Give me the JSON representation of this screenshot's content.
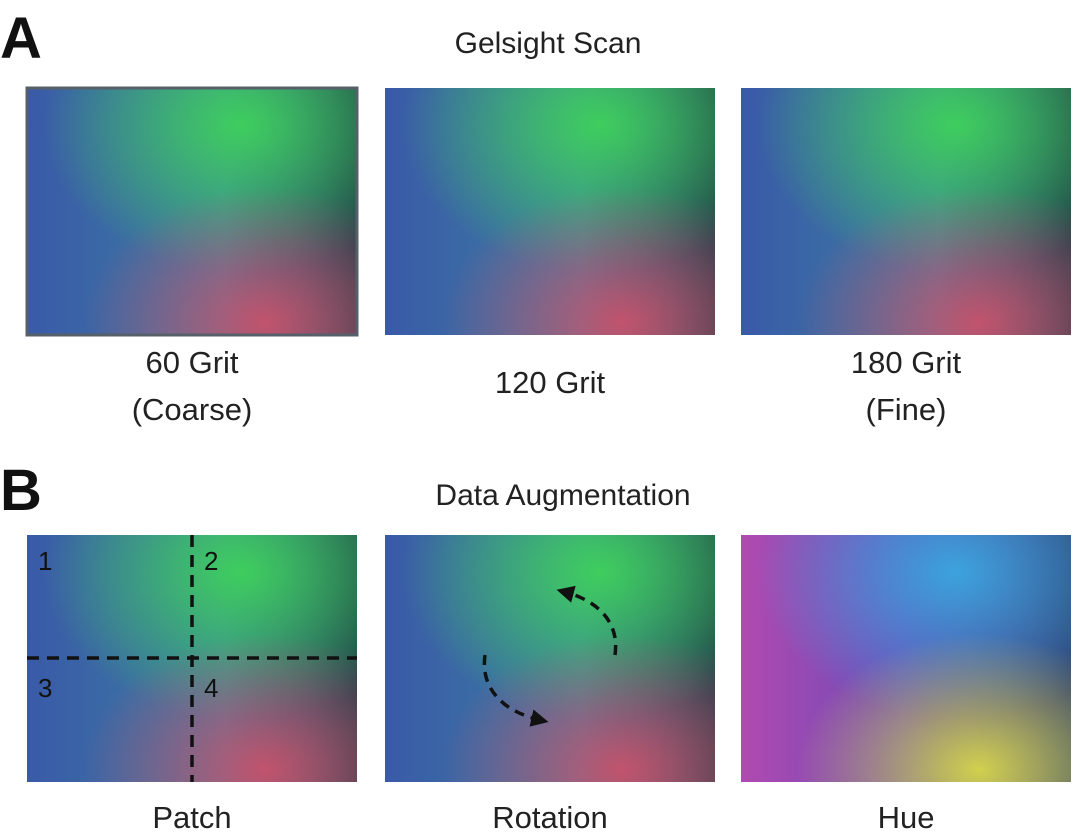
{
  "panels": [
    {
      "letter": "A",
      "title": "Gelsight Scan",
      "images": [
        {
          "caption": [
            "60 Grit",
            "(Coarse)"
          ]
        },
        {
          "caption": [
            "120 Grit"
          ]
        },
        {
          "caption": [
            "180 Grit",
            "(Fine)"
          ]
        }
      ]
    },
    {
      "letter": "B",
      "title": "Data Augmentation",
      "images": [
        {
          "caption": [
            "Patch"
          ]
        },
        {
          "caption": [
            "Rotation"
          ]
        },
        {
          "caption": [
            "Hue"
          ]
        }
      ]
    }
  ],
  "patch_labels": [
    "1",
    "2",
    "3",
    "4"
  ]
}
